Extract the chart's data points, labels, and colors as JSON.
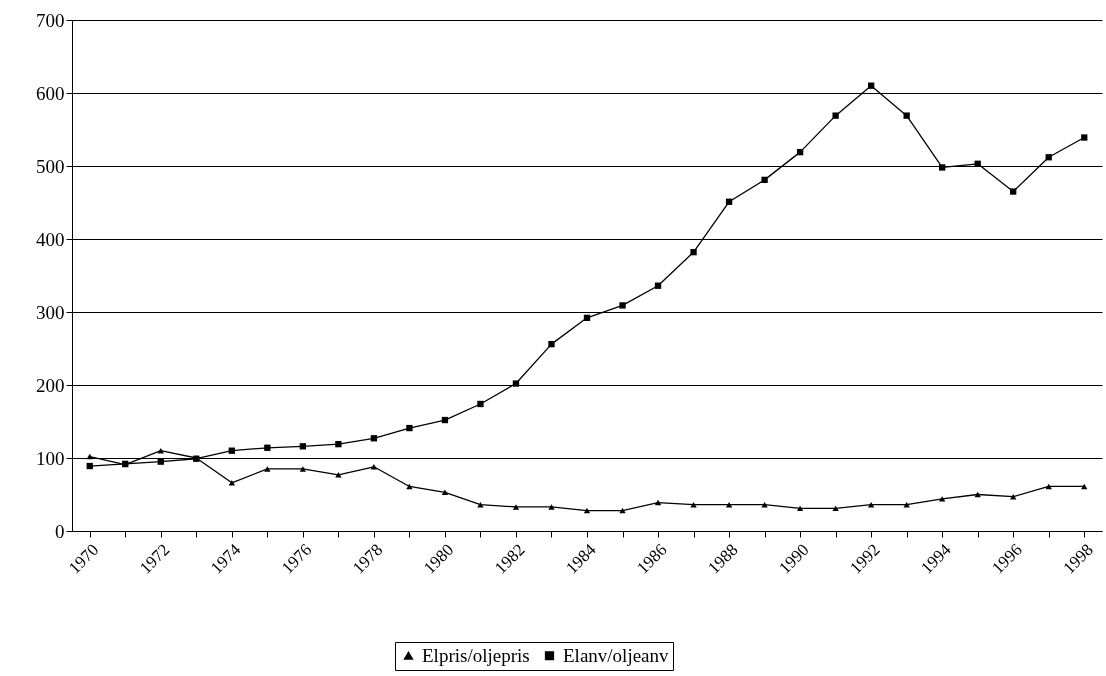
{
  "chart_data": {
    "type": "line",
    "categories": [
      "1970",
      null,
      "1972",
      null,
      "1974",
      null,
      "1976",
      null,
      "1978",
      null,
      "1980",
      null,
      "1982",
      null,
      "1984",
      null,
      "1986",
      null,
      "1988",
      null,
      "1990",
      null,
      "1992",
      null,
      "1994",
      null,
      "1996",
      null,
      "1998"
    ],
    "series": [
      {
        "name": "Elpris/oljepris",
        "color": "#000000",
        "marker": "triangle",
        "values": [
          102,
          91,
          110,
          100,
          66,
          85,
          85,
          77,
          88,
          61,
          53,
          36,
          33,
          33,
          28,
          28,
          39,
          36,
          36,
          36,
          31,
          31,
          36,
          36,
          44,
          50,
          47,
          61,
          61
        ]
      },
      {
        "name": "Elanv/oljeanv",
        "color": "#000000",
        "marker": "square",
        "values": [
          89,
          92,
          95,
          99,
          110,
          114,
          116,
          119,
          127,
          141,
          152,
          174,
          202,
          256,
          292,
          309,
          336,
          382,
          451,
          481,
          519,
          569,
          610,
          569,
          498,
          503,
          465,
          512,
          539
        ]
      }
    ],
    "ylim": [
      0,
      700
    ],
    "yticks": [
      0,
      100,
      200,
      300,
      400,
      500,
      600,
      700
    ],
    "grid": "y",
    "legend": "bottom"
  }
}
